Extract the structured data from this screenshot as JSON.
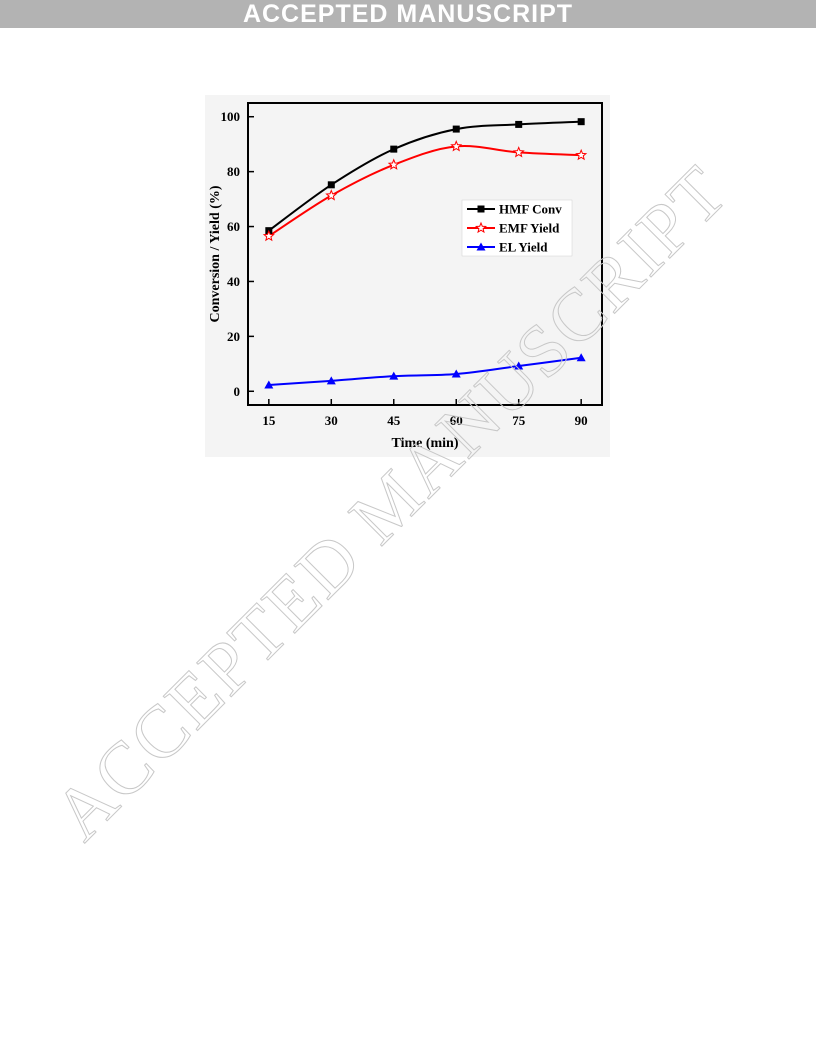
{
  "banner": {
    "text": "ACCEPTED MANUSCRIPT"
  },
  "watermark": {
    "text": "ACCEPTED MANUSCRIPT"
  },
  "chart_data": {
    "type": "line",
    "title": "",
    "xlabel": "Time (min)",
    "ylabel": "Conversion / Yield (%)",
    "x": [
      15,
      30,
      45,
      60,
      75,
      90
    ],
    "xticks": [
      "15",
      "30",
      "45",
      "60",
      "75",
      "90"
    ],
    "yticks": [
      "0",
      "20",
      "40",
      "60",
      "80",
      "100"
    ],
    "xlim": [
      10,
      95
    ],
    "ylim": [
      -5,
      105
    ],
    "grid": false,
    "legend_position": "center-right",
    "series": [
      {
        "name": "HMF Conv",
        "values": [
          58.5,
          75.2,
          88.2,
          95.5,
          97.2,
          98.2
        ],
        "color": "#000000",
        "marker": "square"
      },
      {
        "name": "EMF Yield",
        "values": [
          56.5,
          71.3,
          82.5,
          89.2,
          87.0,
          86.0
        ],
        "color": "#ff0000",
        "marker": "open-star"
      },
      {
        "name": "EL Yield",
        "values": [
          2.3,
          3.8,
          5.5,
          6.3,
          9.2,
          12.2
        ],
        "color": "#0000ff",
        "marker": "triangle"
      }
    ]
  }
}
